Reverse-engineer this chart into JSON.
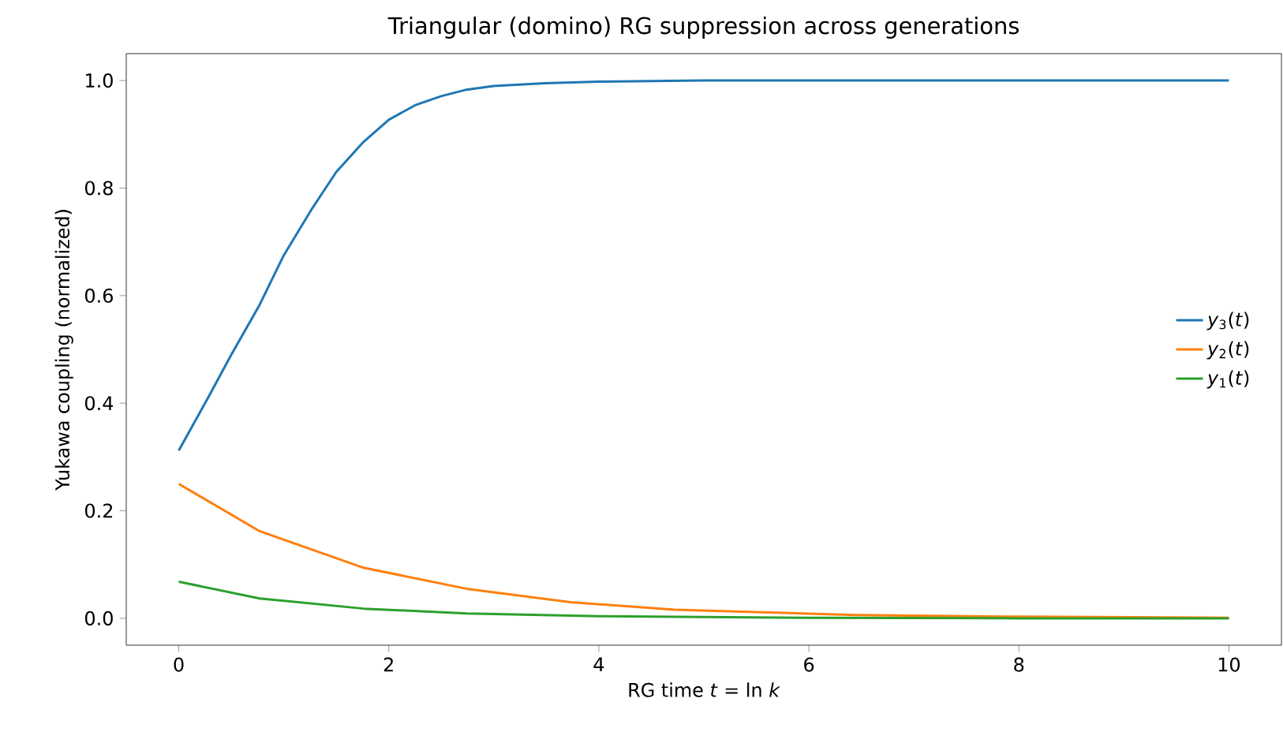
{
  "chart_data": {
    "type": "line",
    "title": "Triangular (domino) RG suppression across generations",
    "xlabel": "RG time *t* = ln *k*",
    "ylabel": "Yukawa coupling (normalized)",
    "xlim": [
      -0.5,
      10.5
    ],
    "ylim": [
      -0.05,
      1.05
    ],
    "xticks": [
      0,
      2,
      4,
      6,
      8,
      10
    ],
    "yticks": [
      {
        "value": 0,
        "label": "0.0"
      },
      {
        "value": 0.2,
        "label": "0.2"
      },
      {
        "value": 0.4,
        "label": "0.4"
      },
      {
        "value": 0.6,
        "label": "0.6"
      },
      {
        "value": 0.8,
        "label": "0.8"
      },
      {
        "value": 1,
        "label": "1.0"
      }
    ],
    "legend": "right",
    "grid": false,
    "marker": "none",
    "line_style": "solid",
    "series": [
      {
        "name": "*y*$_{3}$(*t*)",
        "color": "#1f77b4",
        "x": [
          0,
          0.27,
          0.5,
          0.77,
          1.0,
          1.26,
          1.5,
          1.76,
          2.0,
          2.25,
          2.5,
          2.74,
          3.0,
          3.49,
          4.0,
          5.0,
          6.0,
          7.0,
          8.0,
          9.0,
          10.0
        ],
        "values": [
          0.312,
          0.407,
          0.49,
          0.583,
          0.675,
          0.759,
          0.83,
          0.886,
          0.927,
          0.954,
          0.971,
          0.983,
          0.99,
          0.995,
          0.998,
          1.0,
          1.0,
          1.0,
          1.0,
          1.0,
          1.0
        ]
      },
      {
        "name": "*y*$_{2}$(*t*)",
        "color": "#ff7f0e",
        "x": [
          0,
          0.77,
          1.76,
          2.74,
          3.73,
          4.72,
          6.45,
          8.0,
          10.0
        ],
        "values": [
          0.25,
          0.162,
          0.094,
          0.055,
          0.03,
          0.016,
          0.006,
          0.003,
          0.001
        ]
      },
      {
        "name": "*y*$_{1}$(*t*)",
        "color": "#2ca02c",
        "x": [
          0,
          0.77,
          1.76,
          2.74,
          4.0,
          6.0,
          8.0,
          10.0
        ],
        "values": [
          0.068,
          0.037,
          0.018,
          0.009,
          0.004,
          0.001,
          0.0,
          0.0
        ]
      }
    ]
  }
}
